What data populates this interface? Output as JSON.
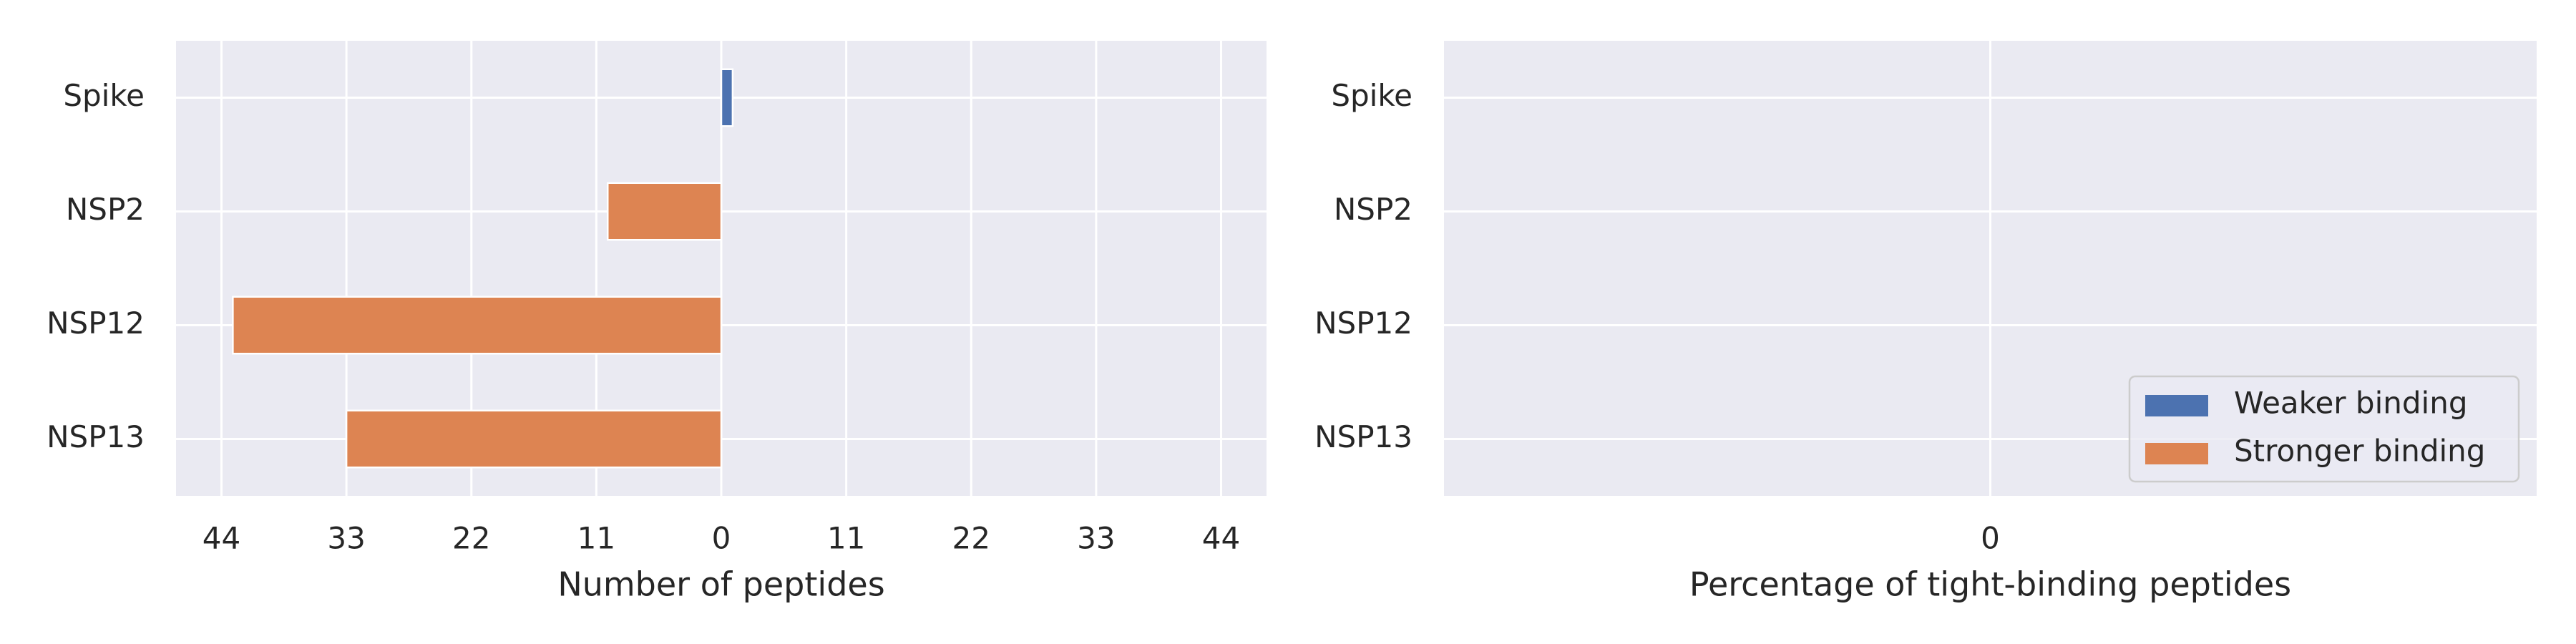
{
  "chart_data": [
    {
      "type": "barh",
      "categories": [
        "Spike",
        "NSP2",
        "NSP12",
        "NSP13"
      ],
      "series": [
        {
          "name": "Weaker binding",
          "color": "#4c72b0",
          "values": [
            1,
            0,
            0,
            0
          ]
        },
        {
          "name": "Stronger binding",
          "color": "#dd8452",
          "values": [
            0,
            -10,
            -43,
            -33
          ]
        }
      ],
      "xlabel": "Number of peptides",
      "xlim": [
        -48,
        48
      ],
      "xticks": [
        {
          "value": -44,
          "label": "44"
        },
        {
          "value": -33,
          "label": "33"
        },
        {
          "value": -22,
          "label": "22"
        },
        {
          "value": -11,
          "label": "11"
        },
        0,
        11,
        22,
        33,
        44
      ],
      "grid": true,
      "legend": null
    },
    {
      "type": "barh",
      "categories": [
        "Spike",
        "NSP2",
        "NSP12",
        "NSP13"
      ],
      "series": [
        {
          "name": "Weaker binding",
          "color": "#4c72b0",
          "values": [
            0,
            0,
            0,
            0
          ]
        },
        {
          "name": "Stronger binding",
          "color": "#dd8452",
          "values": [
            0,
            0,
            0,
            0
          ]
        }
      ],
      "xlabel": "Percentage of tight-binding peptides",
      "xlim": [
        -0.05,
        0.05
      ],
      "xticks": [
        0
      ],
      "grid": true,
      "legend": "lower right"
    }
  ]
}
